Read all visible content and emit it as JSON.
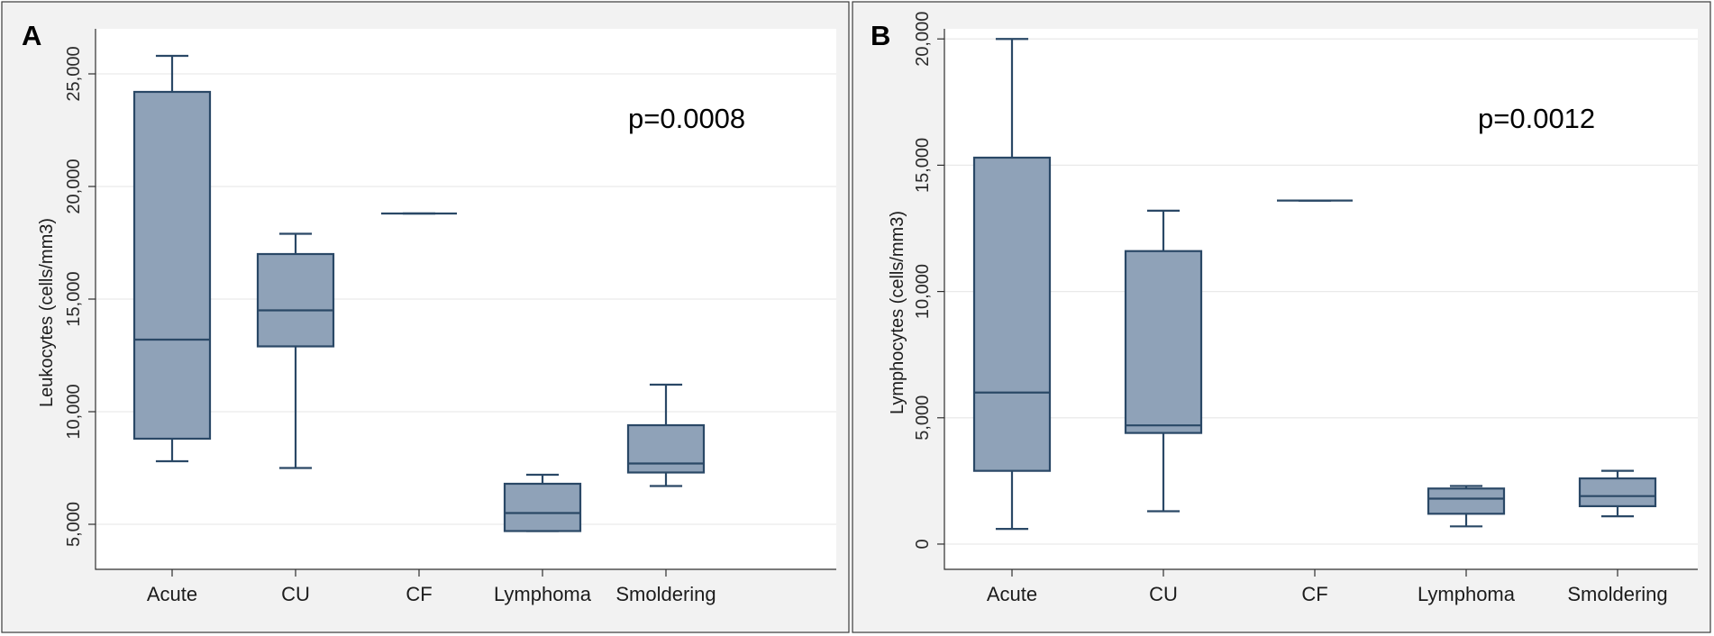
{
  "chart_data": [
    {
      "type": "box",
      "panel_label": "A",
      "ylabel": "Leukocytes (cells/mm3)",
      "annotation": "p=0.0008",
      "ylim": [
        3000,
        27000
      ],
      "yticks": [
        5000,
        10000,
        15000,
        20000,
        25000
      ],
      "ytick_labels": [
        "5,000",
        "10,000",
        "15,000",
        "20,000",
        "25,000"
      ],
      "categories": [
        "Acute",
        "CU",
        "CF",
        "Lymphoma",
        "Smoldering"
      ],
      "boxes": [
        {
          "category": "Acute",
          "whisker_low": 7800,
          "q1": 8800,
          "median": 13200,
          "q3": 24200,
          "whisker_high": 25800
        },
        {
          "category": "CU",
          "whisker_low": 7500,
          "q1": 12900,
          "median": 14500,
          "q3": 17000,
          "whisker_high": 17900
        },
        {
          "category": "CF",
          "whisker_low": 18800,
          "q1": 18800,
          "median": 18800,
          "q3": 18800,
          "whisker_high": 18800
        },
        {
          "category": "Lymphoma",
          "whisker_low": 4700,
          "q1": 4700,
          "median": 5500,
          "q3": 6800,
          "whisker_high": 7200
        },
        {
          "category": "Smoldering",
          "whisker_low": 6700,
          "q1": 7300,
          "median": 7700,
          "q3": 9400,
          "whisker_high": 11200
        }
      ]
    },
    {
      "type": "box",
      "panel_label": "B",
      "ylabel": "Lymphocytes (cells/mm3)",
      "annotation": "p=0.0012",
      "ylim": [
        -1000,
        20400
      ],
      "yticks": [
        0,
        5000,
        10000,
        15000,
        20000
      ],
      "ytick_labels": [
        "0",
        "5,000",
        "10,000",
        "15,000",
        "20,000"
      ],
      "categories": [
        "Acute",
        "CU",
        "CF",
        "Lymphoma",
        "Smoldering"
      ],
      "boxes": [
        {
          "category": "Acute",
          "whisker_low": 600,
          "q1": 2900,
          "median": 6000,
          "q3": 15300,
          "whisker_high": 20000
        },
        {
          "category": "CU",
          "whisker_low": 1300,
          "q1": 4400,
          "median": 4700,
          "q3": 11600,
          "whisker_high": 13200
        },
        {
          "category": "CF",
          "whisker_low": 13600,
          "q1": 13600,
          "median": 13600,
          "q3": 13600,
          "whisker_high": 13600
        },
        {
          "category": "Lymphoma",
          "whisker_low": 700,
          "q1": 1200,
          "median": 1800,
          "q3": 2200,
          "whisker_high": 2300
        },
        {
          "category": "Smoldering",
          "whisker_low": 1100,
          "q1": 1500,
          "median": 1900,
          "q3": 2600,
          "whisker_high": 2900
        }
      ]
    }
  ]
}
